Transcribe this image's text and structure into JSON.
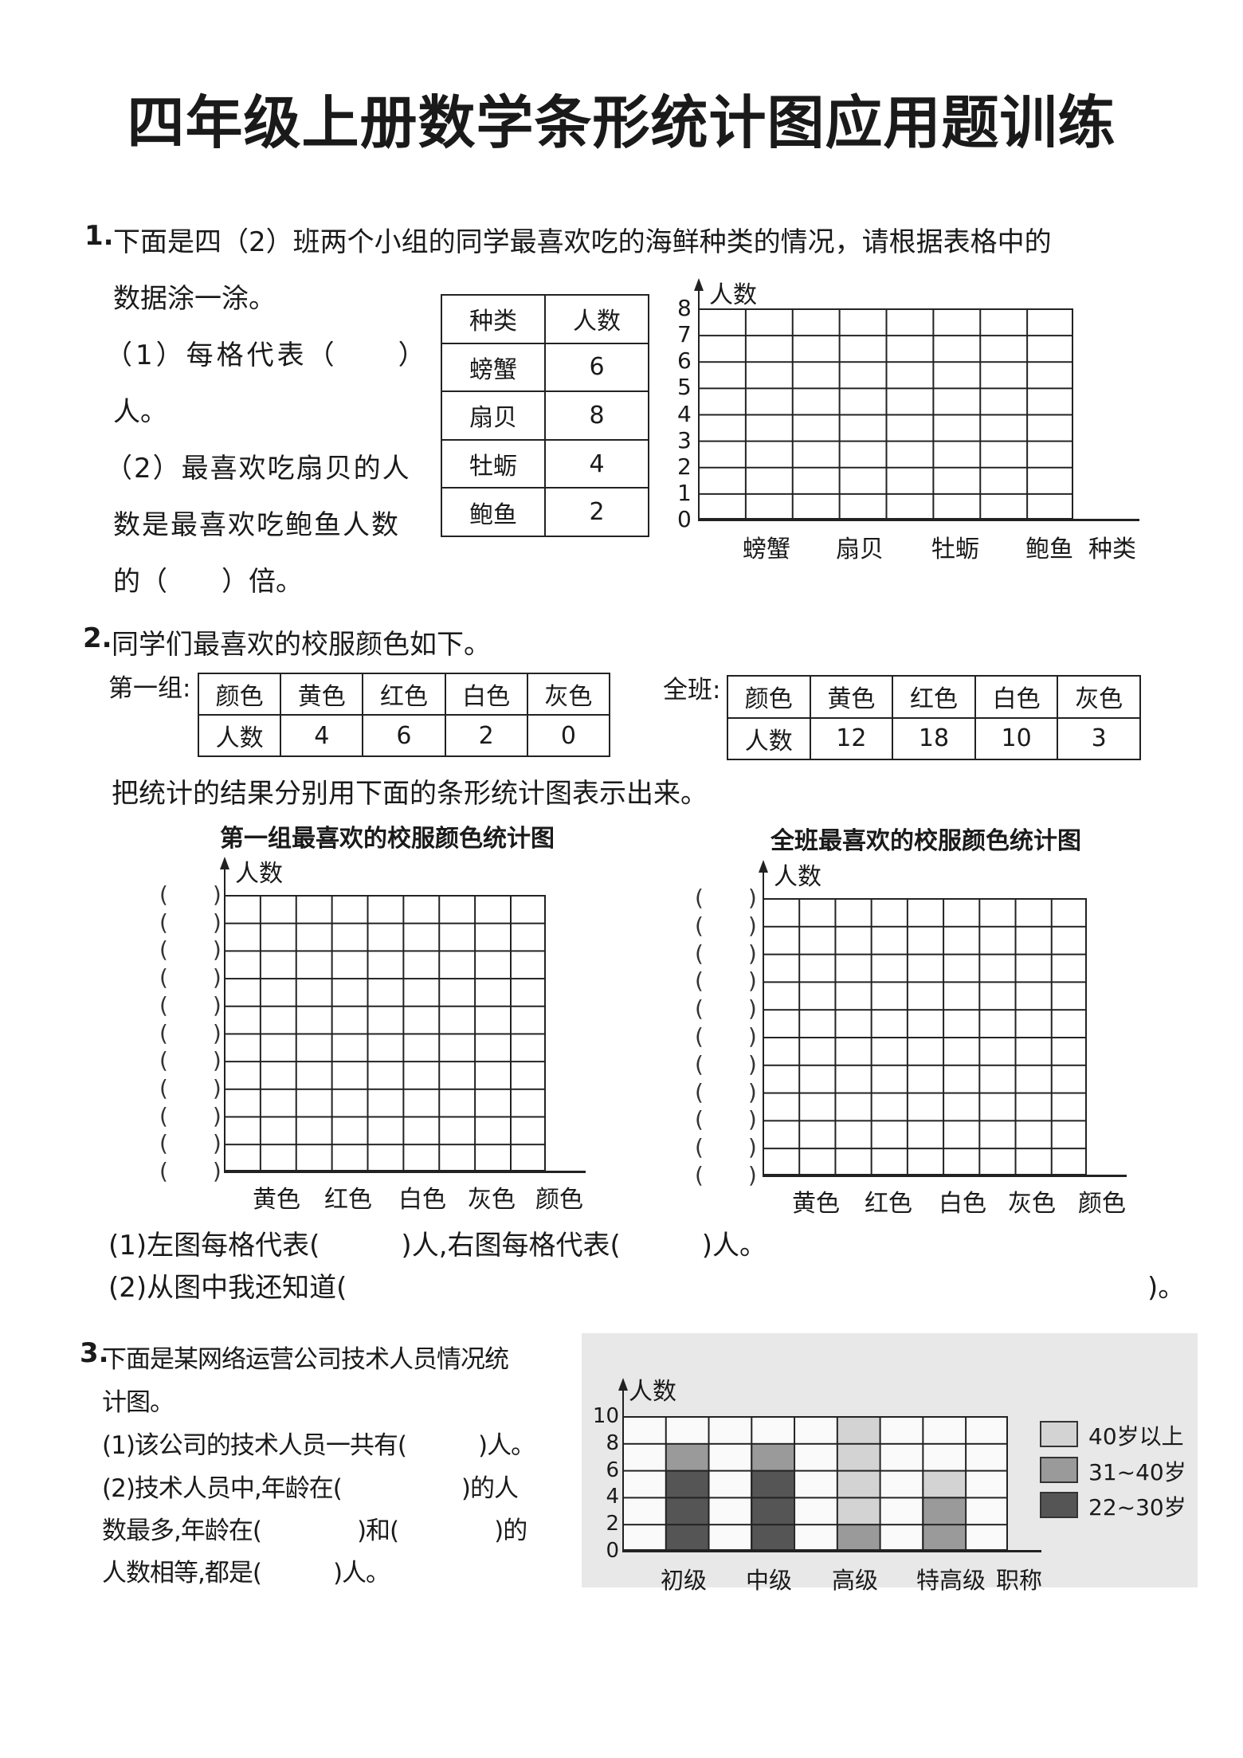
{
  "title": "四年级上册数学条形统计图应用题训练",
  "q1": {
    "num": "1.",
    "lines": [
      "下面是四（2）班两个小组的同学最喜欢吃的海鲜种类的情况，请根据表格中的",
      "数据涂一涂。",
      "（1）每格代表（　　）",
      "人。",
      "（2）最喜欢吃扇贝的人",
      "数是最喜欢吃鲍鱼人数",
      "的（　　）倍。"
    ],
    "table": {
      "headers": [
        "种类",
        "人数"
      ],
      "rows": [
        [
          "螃蟹",
          "6"
        ],
        [
          "扇贝",
          "8"
        ],
        [
          "牡蛎",
          "4"
        ],
        [
          "鲍鱼",
          "2"
        ]
      ]
    },
    "chart": {
      "ylabel": "人数",
      "xlabel": "种类",
      "yticks": [
        "0",
        "1",
        "2",
        "3",
        "4",
        "5",
        "6",
        "7",
        "8"
      ],
      "categories": [
        "螃蟹",
        "扇贝",
        "牡蛎",
        "鲍鱼"
      ],
      "grid_cols": 8,
      "grid_rows": 8
    }
  },
  "q2": {
    "num": "2.",
    "intro": "同学们最喜欢的校服颜色如下。",
    "group_label": "第一组:",
    "class_label": "全班:",
    "group_table": {
      "headers": [
        "颜色",
        "黄色",
        "红色",
        "白色",
        "灰色"
      ],
      "row": [
        "人数",
        "4",
        "6",
        "2",
        "0"
      ]
    },
    "class_table": {
      "headers": [
        "颜色",
        "黄色",
        "红色",
        "白色",
        "灰色"
      ],
      "row": [
        "人数",
        "12",
        "18",
        "10",
        "3"
      ]
    },
    "instruction": "把统计的结果分别用下面的条形统计图表示出来。",
    "left_chart": {
      "title": "第一组最喜欢的校服颜色统计图",
      "ylabel": "人数",
      "categories": [
        "黄色",
        "红色",
        "白色",
        "灰色"
      ],
      "xlabel": "颜色",
      "blank_label": "(　　)",
      "grid_cols": 9,
      "grid_rows": 10
    },
    "right_chart": {
      "title": "全班最喜欢的校服颜色统计图",
      "ylabel": "人数",
      "categories": [
        "黄色",
        "红色",
        "白色",
        "灰色"
      ],
      "xlabel": "颜色",
      "blank_label": "(　　)",
      "grid_cols": 9,
      "grid_rows": 10
    },
    "sub1": "(1)左图每格代表(　　　)人,右图每格代表(　　　)人。",
    "sub2": "(2)从图中我还知道(",
    "sub2_end": ")。"
  },
  "q3": {
    "num": "3.",
    "lines": [
      "下面是某网络运营公司技术人员情况统",
      "计图。",
      "(1)该公司的技术人员一共有(　　　)人。",
      "(2)技术人员中,年龄在(　　　　　)的人",
      "数最多,年龄在(　　　　)和(　　　　)的",
      "人数相等,都是(　　　)人。"
    ]
  },
  "chart_data": {
    "type": "bar",
    "stacked": true,
    "ylabel": "人数",
    "xlabel": "职称",
    "categories": [
      "初级",
      "中级",
      "高级",
      "特高级"
    ],
    "yticks": [
      "0",
      "2",
      "4",
      "6",
      "8",
      "10"
    ],
    "ylim": [
      0,
      10
    ],
    "grid": true,
    "legend_position": "right",
    "series": [
      {
        "name": "22~30岁",
        "values": [
          6,
          6,
          0,
          0
        ],
        "color": "#555555"
      },
      {
        "name": "31~40岁",
        "values": [
          2,
          2,
          2,
          4
        ],
        "color": "#9a9a9a"
      },
      {
        "name": "40岁以上",
        "values": [
          0,
          0,
          8,
          2
        ],
        "color": "#d3d3d3"
      }
    ],
    "legend_order": [
      "40岁以上",
      "31~40岁",
      "22~30岁"
    ],
    "background": "#e8e8e8"
  }
}
